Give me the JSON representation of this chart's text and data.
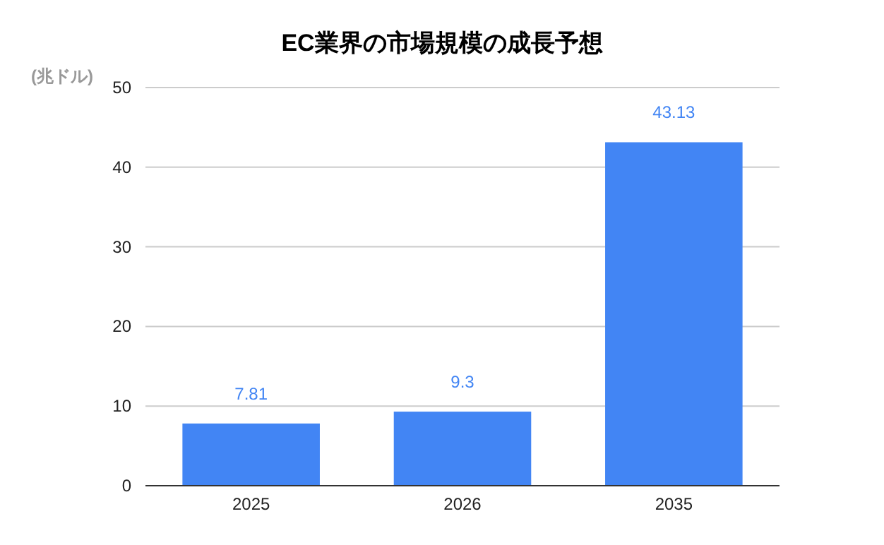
{
  "chart_data": {
    "type": "bar",
    "title": "EC業界の市場規模の成長予想",
    "ylabel": "(兆ドル)",
    "categories": [
      "2025",
      "2026",
      "2035"
    ],
    "values": [
      7.81,
      9.3,
      43.13
    ],
    "color": "#4285f4",
    "ylim": [
      0,
      50
    ],
    "yticks": [
      0,
      10,
      20,
      30,
      40,
      50
    ],
    "grid": "y",
    "data_labels": true
  }
}
